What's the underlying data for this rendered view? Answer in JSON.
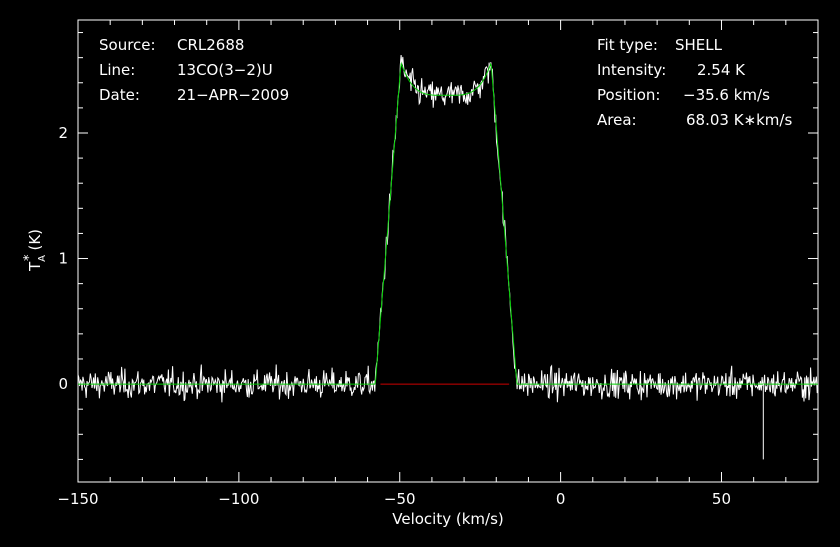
{
  "info_left": [
    {
      "label": "Source:",
      "value": "CRL2688"
    },
    {
      "label": "Line:",
      "value": "13CO(3−2)U"
    },
    {
      "label": "Date:",
      "value": "21−APR−2009"
    }
  ],
  "info_right": [
    {
      "label": "Fit type:",
      "value": "SHELL"
    },
    {
      "label": "Intensity:",
      "value": "2.54 K"
    },
    {
      "label": "Position:",
      "value": "−35.6 km/s"
    },
    {
      "label": "Area:",
      "value": "68.03 K∗km/s"
    }
  ],
  "chart_data": {
    "type": "line",
    "xlabel": "Velocity (km/s)",
    "ylabel": "T",
    "ylabel_sup": "*",
    "ylabel_sub": "A",
    "ylabel_unit": "(K)",
    "xlim": [
      -150,
      80
    ],
    "ylim": [
      -0.78,
      2.9
    ],
    "x_ticks": [
      -150,
      -100,
      -50,
      0,
      50
    ],
    "x_tick_labels": [
      "−150",
      "−100",
      "−50",
      "0",
      "50"
    ],
    "y_ticks": [
      0,
      1,
      2
    ],
    "y_tick_labels": [
      "0",
      "1",
      "2"
    ],
    "grid": false,
    "colors": {
      "background": "#000000",
      "axes": "#ffffff",
      "spectrum": "#ffffff",
      "fit": "#00cc00",
      "baseline": "#cc0000"
    },
    "spectrum": {
      "x_start": -150,
      "x_end": 80,
      "n_channels": 900,
      "noise_rms": 0.1,
      "outliers": [
        {
          "x": 63,
          "y": -0.6
        }
      ]
    },
    "fit": {
      "type": "SHELL",
      "intensity": 2.54,
      "position": -35.6,
      "area": 68.03,
      "half_width_top": 14,
      "half_width_base": 22,
      "edge_peak": 2.56,
      "center_dip": 2.3
    },
    "baseline_segment": {
      "x": [
        -56,
        -16
      ],
      "y": 0
    }
  }
}
